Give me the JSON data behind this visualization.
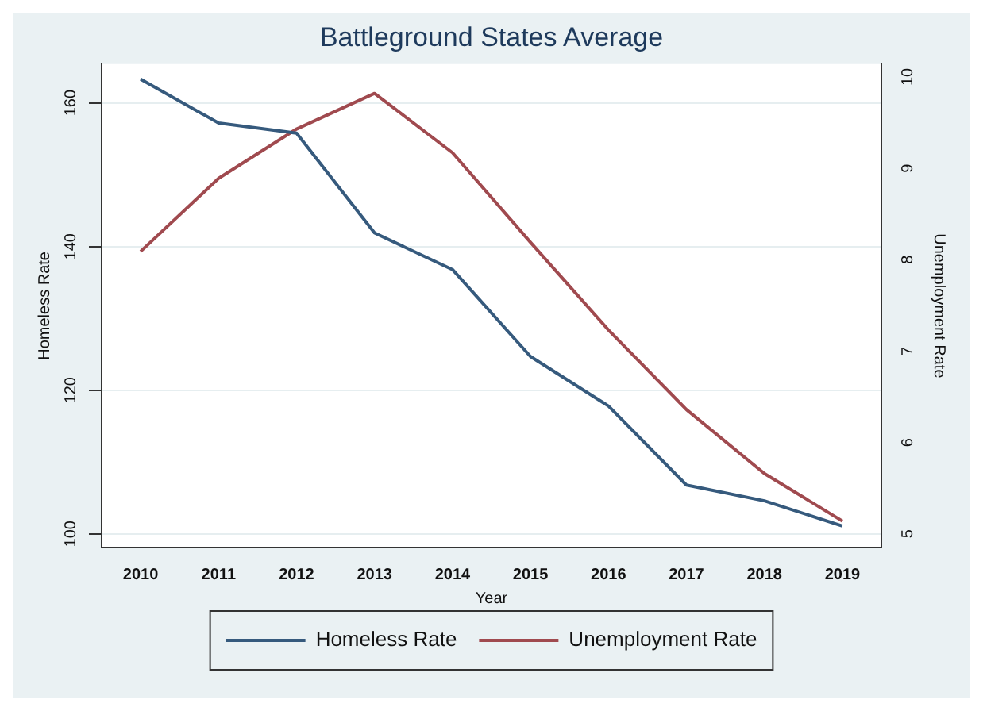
{
  "chart_data": {
    "type": "line",
    "title": "Battleground States Average",
    "xlabel": "Year",
    "ylabel": "Homeless Rate",
    "y2label": "Unemployment Rate",
    "categories": [
      "2010",
      "2011",
      "2012",
      "2013",
      "2014",
      "2015",
      "2016",
      "2017",
      "2018",
      "2019"
    ],
    "series": [
      {
        "name": "Homeless Rate",
        "color": "#365a7d",
        "values": [
          163.3,
          157.2,
          155.8,
          141.9,
          136.8,
          124.7,
          117.8,
          106.8,
          104.6,
          101.1
        ]
      },
      {
        "name": "Unemployment Rate",
        "color": "#a04a4f",
        "axis": "y2",
        "values": [
          8.09,
          8.89,
          9.43,
          9.82,
          9.17,
          8.19,
          7.23,
          6.36,
          5.66,
          5.14
        ]
      }
    ],
    "ylim": [
      98.1,
      165.4
    ],
    "yticks": [
      100,
      120,
      140,
      160
    ],
    "y2lim": [
      4.85,
      10.14
    ],
    "y2ticks": [
      5,
      6,
      7,
      8,
      9,
      10
    ],
    "grid": "y",
    "legend": "bottom",
    "marker": "none",
    "line_style": "solid"
  }
}
